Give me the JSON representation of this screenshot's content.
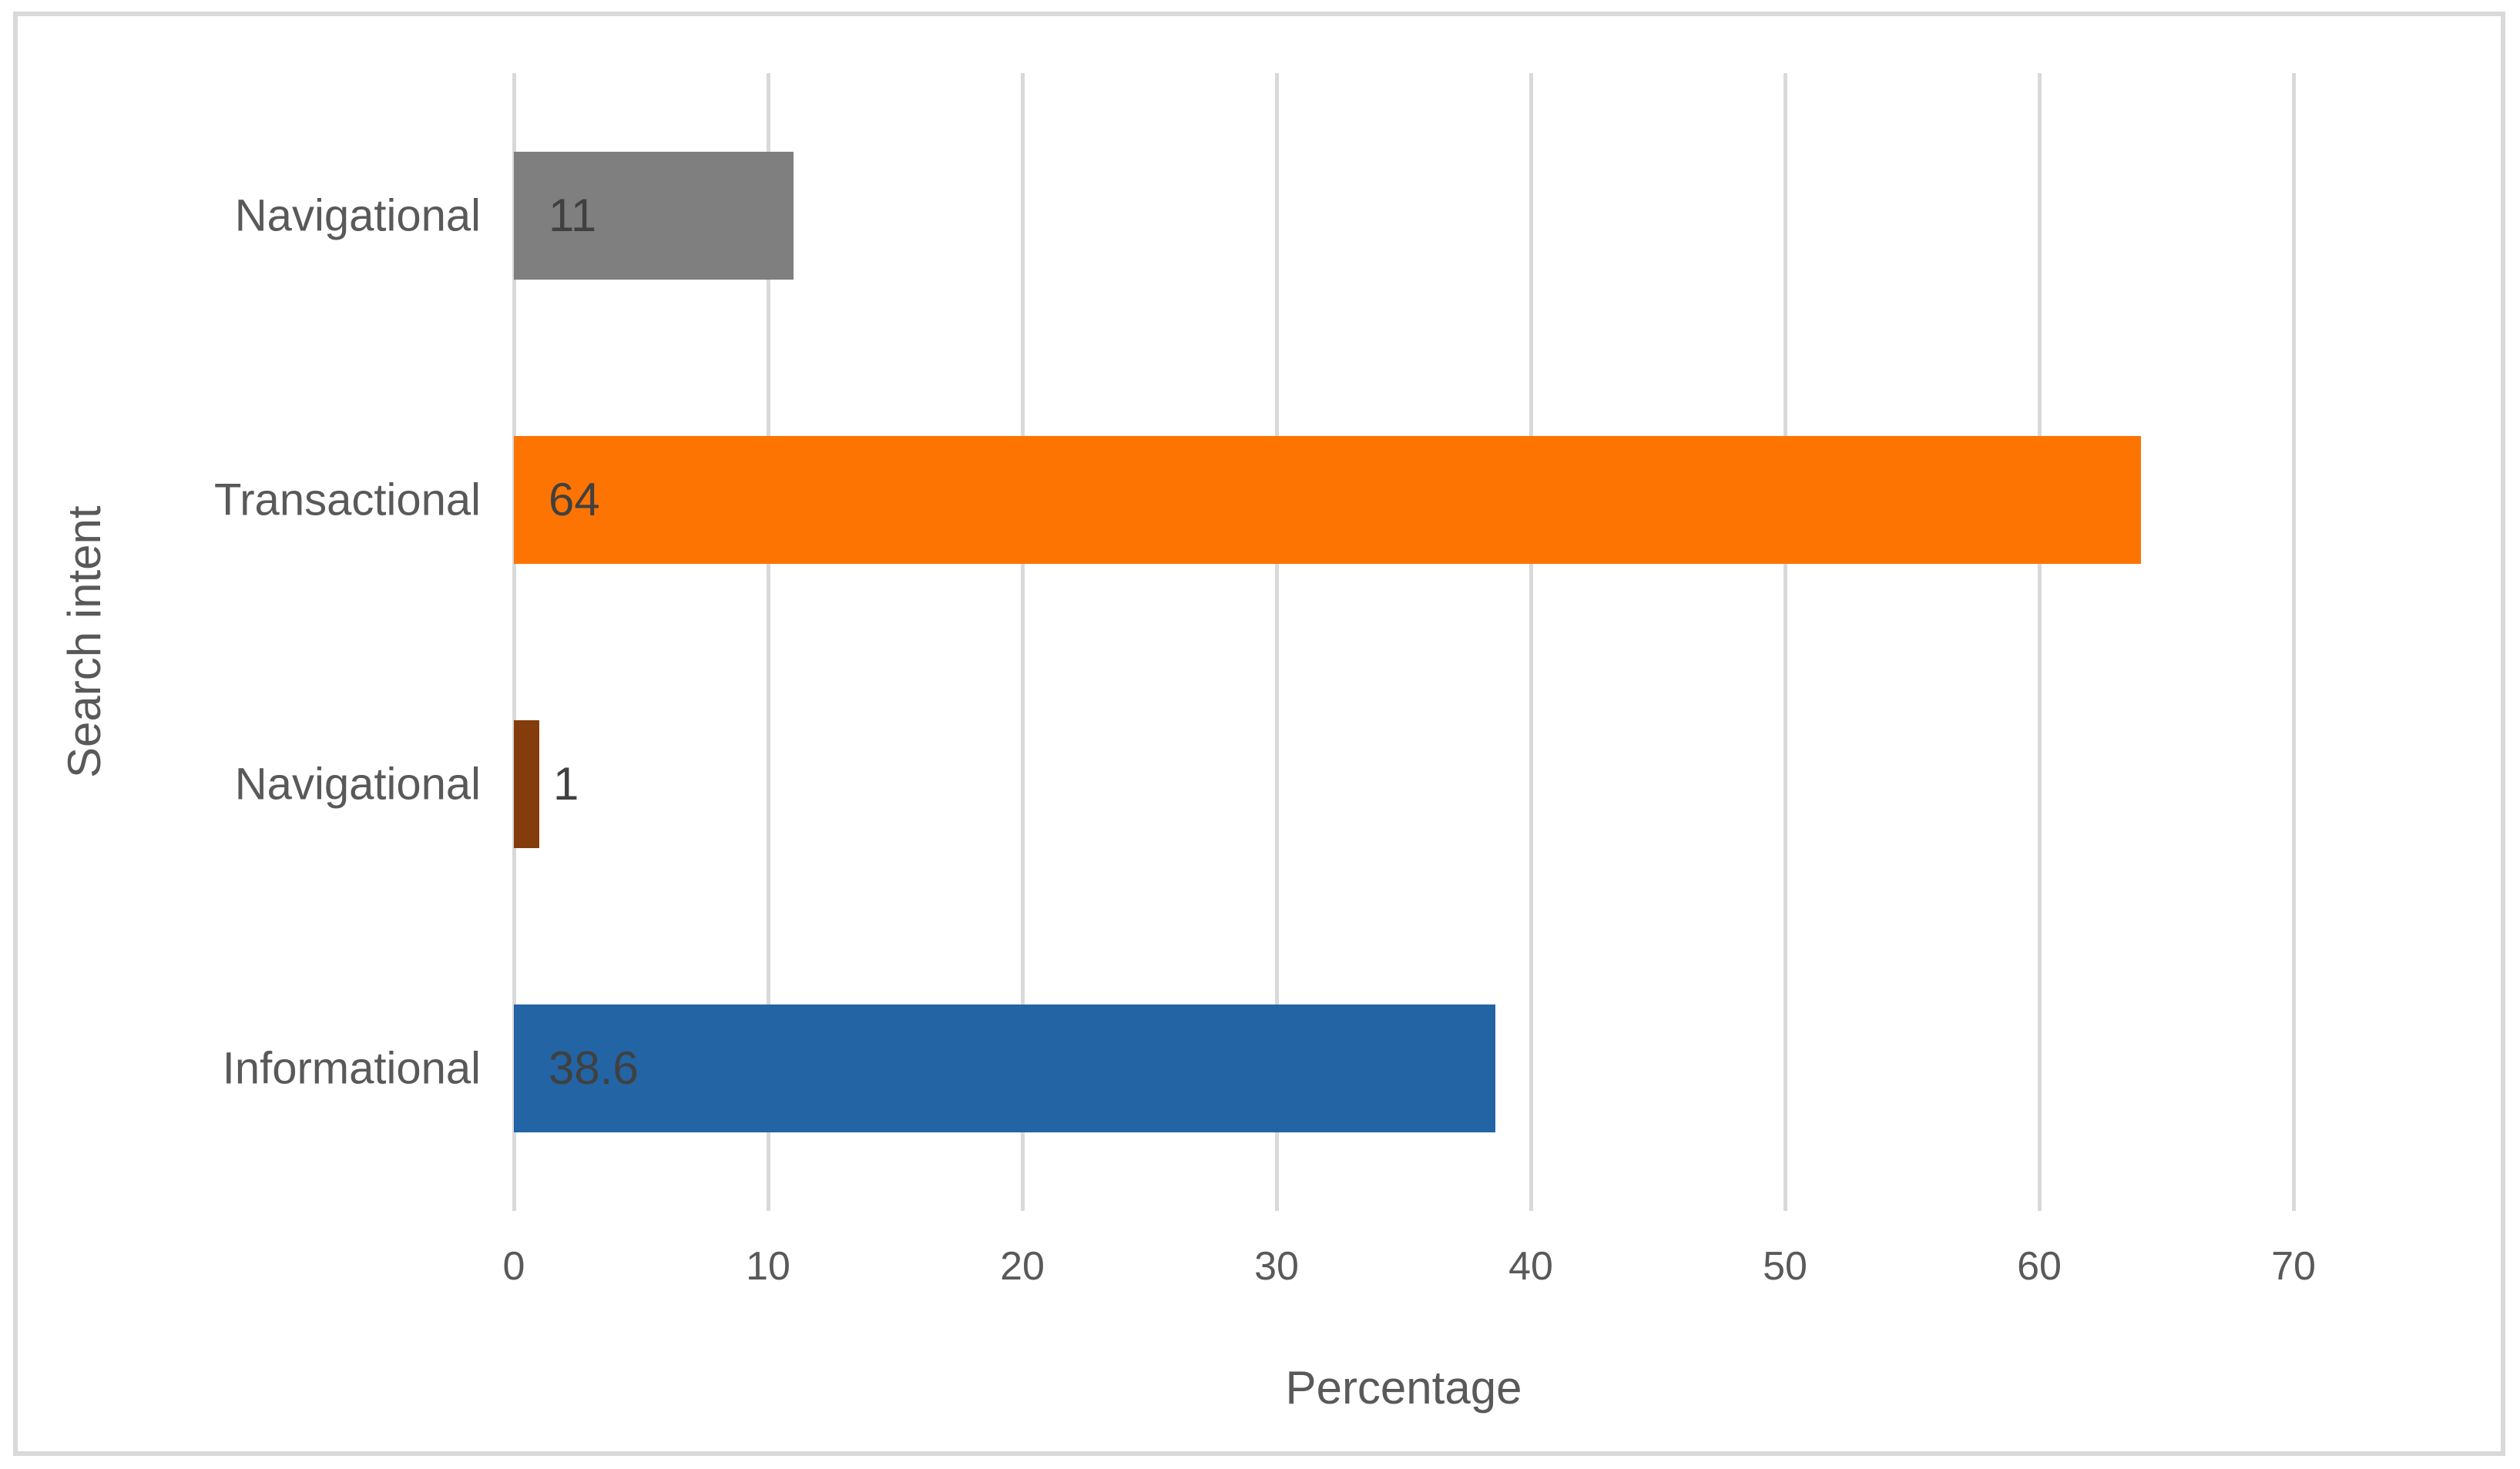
{
  "chart_data": {
    "type": "bar",
    "orientation": "horizontal",
    "title": "",
    "xlabel": "Percentage",
    "ylabel": "Search intent",
    "categories": [
      "Navigational",
      "Transactional",
      "Navigational",
      "Informational"
    ],
    "values": [
      11,
      64,
      1,
      38.6
    ],
    "value_labels": [
      "11",
      "64",
      "1",
      "38.6"
    ],
    "bar_colors": [
      "#7F7F7F",
      "#FD7402",
      "#843C0C",
      "#2364A4"
    ],
    "xlim": [
      0,
      70
    ],
    "xticks": [
      0,
      10,
      20,
      30,
      40,
      50,
      60,
      70
    ],
    "grid": "vertical",
    "legend": "none"
  },
  "styles": {
    "gridline_color": "#D9D9D9",
    "frame_border_color": "#D9D9D9",
    "axis_text_color": "#595959",
    "data_label_color": "#404040",
    "background": "#ffffff"
  }
}
